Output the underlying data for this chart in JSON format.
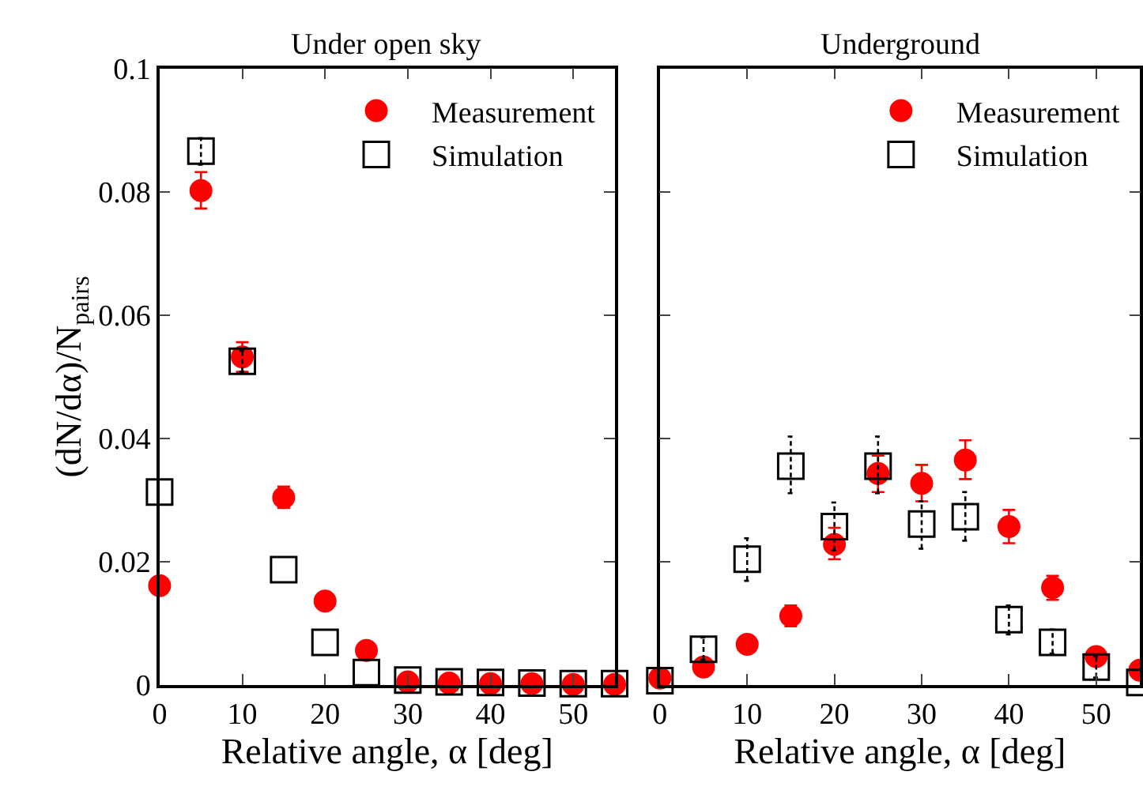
{
  "chart_data": [
    {
      "type": "scatter",
      "title": "Under open sky",
      "xlabel": "Relative angle, α [deg]",
      "ylabel": "(dN/dα)/N$_{pairs}$",
      "x": [
        0,
        5,
        10,
        15,
        20,
        25,
        30,
        35,
        40,
        45,
        50,
        55
      ],
      "xlim": [
        0,
        55
      ],
      "xticks": [
        0,
        10,
        20,
        30,
        40,
        50
      ],
      "ylim": [
        0,
        0.1
      ],
      "yticks": [
        0,
        0.02,
        0.04,
        0.06,
        0.08,
        0.1
      ],
      "legend": "top right",
      "grid": false,
      "series": [
        {
          "name": "Measurement",
          "color": "#ff0000",
          "marker": "circle",
          "values": [
            0.0161,
            0.0802,
            0.0532,
            0.0304,
            0.0136,
            0.0056,
            0.0005,
            0.0003,
            0.0002,
            0.0002,
            0.0001,
            0.0001
          ],
          "errors": [
            null,
            [
              0.0773,
              0.0832
            ],
            [
              0.0508,
              0.0556
            ],
            [
              0.0287,
              0.0322
            ],
            null,
            null,
            null,
            null,
            null,
            null,
            null,
            null
          ]
        },
        {
          "name": "Simulation",
          "color": "#000000",
          "marker": "square",
          "line_style": "dashed",
          "values": [
            0.0313,
            0.0866,
            0.0525,
            0.0187,
            0.0069,
            0.002,
            0.0008,
            0.0005,
            0.0004,
            0.0003,
            0.0002,
            0.0002
          ],
          "errors": [
            null,
            [
              0.0844,
              0.0887
            ],
            [
              0.0508,
              0.0542
            ],
            null,
            null,
            null,
            null,
            null,
            null,
            null,
            null,
            null
          ]
        }
      ]
    },
    {
      "type": "scatter",
      "title": "Underground",
      "xlabel": "Relative angle, α [deg]",
      "x": [
        0,
        5,
        10,
        15,
        20,
        25,
        30,
        35,
        40,
        45,
        50,
        55
      ],
      "xlim": [
        0,
        55
      ],
      "xticks": [
        0,
        10,
        20,
        30,
        40,
        50
      ],
      "ylim": [
        0,
        0.1
      ],
      "tick_labels": "x",
      "legend": "top right",
      "grid": false,
      "series": [
        {
          "name": "Measurement",
          "color": "#ff0000",
          "marker": "circle",
          "values": [
            0.0011,
            0.0029,
            0.0066,
            0.0112,
            0.0228,
            0.0343,
            0.0327,
            0.0365,
            0.0257,
            0.0158,
            0.0046,
            0.0024
          ],
          "errors": [
            null,
            null,
            null,
            [
              0.0095,
              0.0129
            ],
            [
              0.0204,
              0.0255
            ],
            [
              0.0313,
              0.0372
            ],
            [
              0.0298,
              0.0357
            ],
            [
              0.0334,
              0.0397
            ],
            [
              0.023,
              0.0284
            ],
            [
              0.0138,
              0.0177
            ],
            null,
            null
          ]
        },
        {
          "name": "Simulation",
          "color": "#000000",
          "marker": "square",
          "line_style": "dashed",
          "values": [
            0.0007,
            0.0058,
            0.0204,
            0.0355,
            0.0257,
            0.0355,
            0.0261,
            0.0273,
            0.0106,
            0.0069,
            0.0029,
            0.0004
          ],
          "errors": [
            null,
            [
              0.0041,
              0.0077
            ],
            [
              0.0169,
              0.0238
            ],
            [
              0.0311,
              0.0403
            ],
            [
              0.0218,
              0.0296
            ],
            [
              0.0311,
              0.0403
            ],
            [
              0.0221,
              0.0298
            ],
            [
              0.0234,
              0.0313
            ],
            [
              0.0082,
              0.0129
            ],
            [
              0.0051,
              0.009
            ],
            [
              0.0012,
              0.0046
            ],
            null
          ]
        }
      ]
    }
  ]
}
